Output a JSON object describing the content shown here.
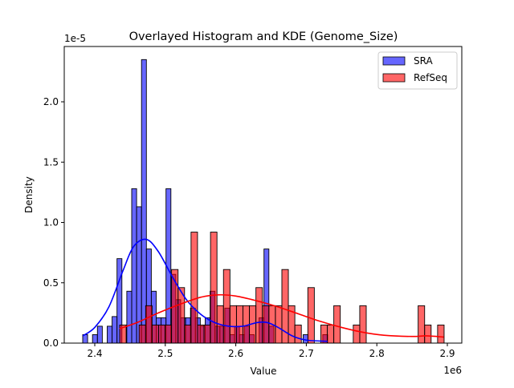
{
  "chart_data": {
    "type": "histogram+kde",
    "title": "Overlayed Histogram and KDE (Genome_Size)",
    "xlabel": "Value",
    "ylabel": "Density",
    "x_offset_label": "1e6",
    "y_offset_label": "1e-5",
    "xlim": [
      2.365,
      2.92
    ],
    "ylim": [
      0,
      2.45
    ],
    "x_ticks": [
      "2.4",
      "2.5",
      "2.6",
      "2.7",
      "2.8",
      "2.9"
    ],
    "x_tick_values": [
      2.4,
      2.5,
      2.6,
      2.7,
      2.8,
      2.9
    ],
    "y_ticks": [
      "0.0",
      "0.5",
      "1.0",
      "1.5",
      "2.0"
    ],
    "y_tick_values": [
      0,
      0.5,
      1.0,
      1.5,
      2.0
    ],
    "grid": false,
    "legend_position": "top-right",
    "series": [
      {
        "name": "SRA",
        "color": "#0000ff",
        "bin_start": 2.3829,
        "bin_end": 2.7303,
        "values": [
          0.07,
          0,
          0.07,
          0.14,
          0,
          0.14,
          0.22,
          0.7,
          0,
          0.43,
          1.28,
          1.13,
          2.35,
          0.78,
          0.43,
          0.21,
          0.21,
          1.28,
          0.57,
          0.36,
          0.21,
          0.21,
          0.29,
          0.21,
          0.14,
          0.21,
          0.43,
          0.14,
          0.14,
          0.29,
          0.07,
          0.14,
          0.07,
          0.14,
          0.07,
          0,
          0.21,
          0.78,
          0.14,
          0,
          0,
          0,
          0,
          0,
          0,
          0.07,
          0,
          0,
          0,
          0.07
        ],
        "kde": [
          [
            2.383,
            0.06
          ],
          [
            2.4,
            0.13
          ],
          [
            2.42,
            0.3
          ],
          [
            2.44,
            0.6
          ],
          [
            2.455,
            0.8
          ],
          [
            2.473,
            0.86
          ],
          [
            2.49,
            0.76
          ],
          [
            2.51,
            0.55
          ],
          [
            2.53,
            0.36
          ],
          [
            2.55,
            0.24
          ],
          [
            2.57,
            0.17
          ],
          [
            2.59,
            0.14
          ],
          [
            2.61,
            0.14
          ],
          [
            2.63,
            0.17
          ],
          [
            2.645,
            0.17
          ],
          [
            2.66,
            0.13
          ],
          [
            2.68,
            0.06
          ],
          [
            2.7,
            0.025
          ],
          [
            2.73,
            0.015
          ]
        ]
      },
      {
        "name": "RefSeq",
        "color": "#ff0000",
        "bin_start": 2.4353,
        "bin_end": 2.8954,
        "values": [
          0.15,
          0,
          0,
          0.15,
          0.31,
          0.15,
          0.15,
          0.15,
          0.61,
          0.46,
          0.15,
          0.92,
          0.15,
          0.15,
          0.92,
          0.31,
          0.61,
          0.31,
          0.31,
          0.31,
          0.31,
          0.46,
          0.31,
          0.31,
          0.31,
          0.61,
          0.31,
          0.15,
          0,
          0.46,
          0,
          0.15,
          0.15,
          0.31,
          0,
          0,
          0.15,
          0.31,
          0,
          0,
          0,
          0,
          0,
          0,
          0,
          0,
          0.31,
          0.15,
          0,
          0.15
        ],
        "kde": [
          [
            2.435,
            0.12
          ],
          [
            2.46,
            0.17
          ],
          [
            2.49,
            0.25
          ],
          [
            2.52,
            0.32
          ],
          [
            2.55,
            0.38
          ],
          [
            2.575,
            0.4
          ],
          [
            2.6,
            0.39
          ],
          [
            2.63,
            0.35
          ],
          [
            2.66,
            0.3
          ],
          [
            2.69,
            0.24
          ],
          [
            2.72,
            0.18
          ],
          [
            2.75,
            0.13
          ],
          [
            2.78,
            0.09
          ],
          [
            2.81,
            0.065
          ],
          [
            2.85,
            0.055
          ],
          [
            2.87,
            0.06
          ],
          [
            2.895,
            0.05
          ]
        ]
      }
    ]
  }
}
